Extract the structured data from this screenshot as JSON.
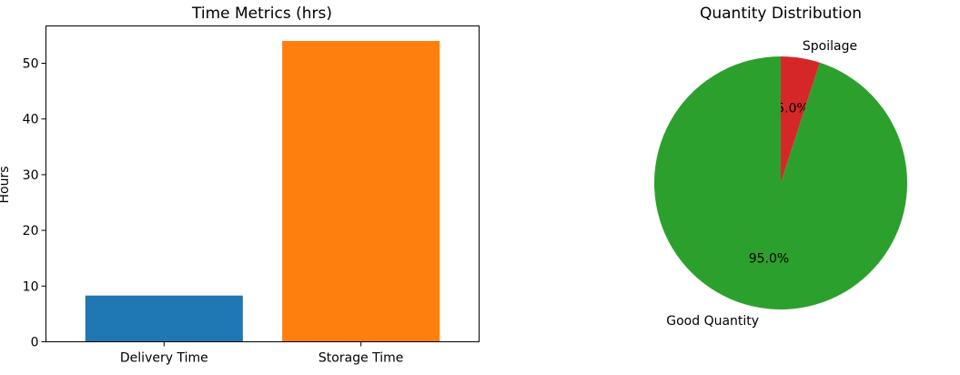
{
  "chart_data": [
    {
      "type": "bar",
      "title": "Time Metrics (hrs)",
      "xlabel": "",
      "ylabel": "Hours",
      "categories": [
        "Delivery Time",
        "Storage Time"
      ],
      "values": [
        8.3,
        54.0
      ],
      "colors": [
        "#1f77b4",
        "#ff7f0e"
      ],
      "ylim": [
        0,
        56.7
      ],
      "yticks": [
        0,
        10,
        20,
        30,
        40,
        50
      ],
      "grid": false,
      "legend": "none"
    },
    {
      "type": "pie",
      "title": "Quantity Distribution",
      "labels": [
        "Spoilage",
        "Good Quantity"
      ],
      "values": [
        5.0,
        95.0
      ],
      "pct_labels": [
        "5.0%",
        "95.0%"
      ],
      "colors": [
        "#d62728",
        "#2ca02c"
      ],
      "start_angle_deg": 90,
      "direction": "clockwise"
    }
  ]
}
